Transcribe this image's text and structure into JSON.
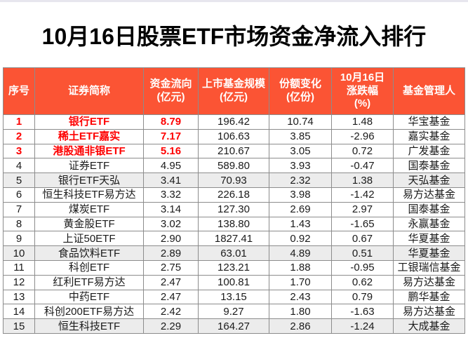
{
  "title": "10月16日股票ETF市场资金净流入排行",
  "colors": {
    "header_bg": "#fb5434",
    "header_text": "#ffffff",
    "highlight_red": "#fe0000",
    "body_text": "#1a1a1a",
    "shaded_row_bg": "#ececec",
    "grid_line": "#8c8c8c"
  },
  "chart_data": {
    "type": "table",
    "title": "10月16日股票ETF市场资金净流入排行",
    "columns": [
      "序号",
      "证券简称",
      "资金流向\n(亿元)",
      "上市基金规模\n(亿元)",
      "份额变化\n(亿份)",
      "10月16日\n涨跌幅\n(%)",
      "基金管理人"
    ],
    "rows": [
      {
        "rank": "1",
        "name": "银行ETF",
        "flow": "8.79",
        "fund_size": "196.42",
        "share_change": "10.74",
        "pct_change": "1.48",
        "manager": "华宝基金"
      },
      {
        "rank": "2",
        "name": "稀土ETF嘉实",
        "flow": "7.17",
        "fund_size": "106.63",
        "share_change": "3.85",
        "pct_change": "-2.96",
        "manager": "嘉实基金"
      },
      {
        "rank": "3",
        "name": "港股通非银ETF",
        "flow": "5.16",
        "fund_size": "210.67",
        "share_change": "3.05",
        "pct_change": "0.72",
        "manager": "广发基金"
      },
      {
        "rank": "4",
        "name": "证券ETF",
        "flow": "4.95",
        "fund_size": "589.80",
        "share_change": "3.93",
        "pct_change": "-0.47",
        "manager": "国泰基金"
      },
      {
        "rank": "5",
        "name": "银行ETF天弘",
        "flow": "3.41",
        "fund_size": "70.93",
        "share_change": "2.32",
        "pct_change": "1.38",
        "manager": "天弘基金"
      },
      {
        "rank": "6",
        "name": "恒生科技ETF易方达",
        "flow": "3.32",
        "fund_size": "226.18",
        "share_change": "3.98",
        "pct_change": "-1.42",
        "manager": "易方达基金"
      },
      {
        "rank": "7",
        "name": "煤炭ETF",
        "flow": "3.14",
        "fund_size": "127.30",
        "share_change": "2.69",
        "pct_change": "2.97",
        "manager": "国泰基金"
      },
      {
        "rank": "8",
        "name": "黄金股ETF",
        "flow": "3.02",
        "fund_size": "138.80",
        "share_change": "1.43",
        "pct_change": "-1.65",
        "manager": "永赢基金"
      },
      {
        "rank": "9",
        "name": "上证50ETF",
        "flow": "2.90",
        "fund_size": "1827.41",
        "share_change": "0.92",
        "pct_change": "0.67",
        "manager": "华夏基金"
      },
      {
        "rank": "10",
        "name": "食品饮料ETF",
        "flow": "2.89",
        "fund_size": "63.01",
        "share_change": "4.89",
        "pct_change": "0.51",
        "manager": "华夏基金"
      },
      {
        "rank": "11",
        "name": "科创ETF",
        "flow": "2.75",
        "fund_size": "123.21",
        "share_change": "1.88",
        "pct_change": "-0.95",
        "manager": "工银瑞信基金"
      },
      {
        "rank": "12",
        "name": "红利ETF易方达",
        "flow": "2.47",
        "fund_size": "100.81",
        "share_change": "1.70",
        "pct_change": "0.62",
        "manager": "易方达基金"
      },
      {
        "rank": "13",
        "name": "中药ETF",
        "flow": "2.47",
        "fund_size": "13.15",
        "share_change": "2.43",
        "pct_change": "0.79",
        "manager": "鹏华基金"
      },
      {
        "rank": "14",
        "name": "科创200ETF易方达",
        "flow": "2.42",
        "fund_size": "9.27",
        "share_change": "1.80",
        "pct_change": "-1.63",
        "manager": "易方达基金"
      },
      {
        "rank": "15",
        "name": "恒生科技ETF",
        "flow": "2.29",
        "fund_size": "164.27",
        "share_change": "2.86",
        "pct_change": "-1.24",
        "manager": "大成基金"
      }
    ],
    "highlighted_ranks": [
      "1",
      "2",
      "3"
    ],
    "shaded_ranks": [
      "5",
      "10",
      "15"
    ]
  }
}
